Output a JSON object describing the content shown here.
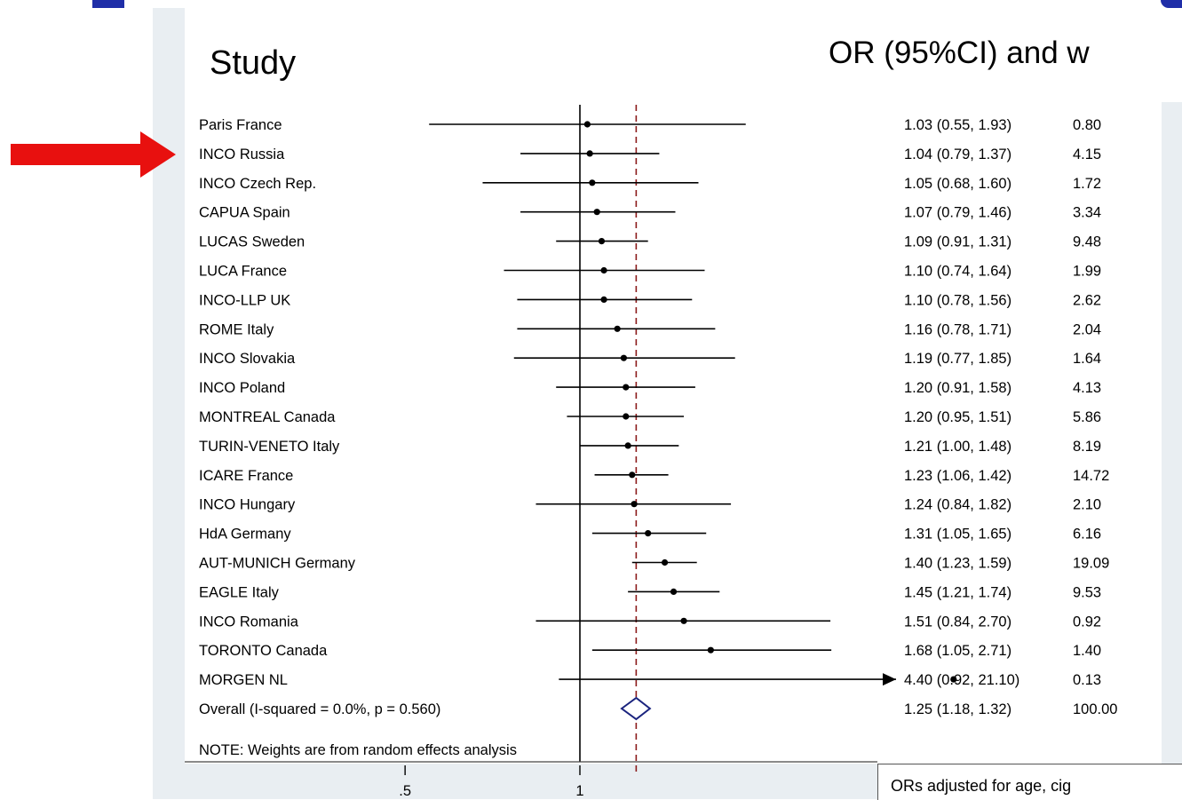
{
  "headings": {
    "study": "Study",
    "or_weight": "OR (95%CI) and w"
  },
  "footer_note": "ORs adjusted for age, cig",
  "chart_data": {
    "type": "forest",
    "scale": "log",
    "x_ticks": [
      ".5",
      "1"
    ],
    "x_tick_values": [
      0.5,
      1
    ],
    "null_line": 1,
    "overall_line": 1.25,
    "note": "NOTE: Weights are from random effects analysis",
    "studies": [
      {
        "name": "Paris France",
        "or": 1.03,
        "lo": 0.55,
        "hi": 1.93,
        "ci_text": "1.03 (0.55, 1.93)",
        "weight": "0.80"
      },
      {
        "name": "INCO Russia",
        "or": 1.04,
        "lo": 0.79,
        "hi": 1.37,
        "ci_text": "1.04 (0.79, 1.37)",
        "weight": "4.15"
      },
      {
        "name": "INCO Czech Rep.",
        "or": 1.05,
        "lo": 0.68,
        "hi": 1.6,
        "ci_text": "1.05 (0.68, 1.60)",
        "weight": "1.72"
      },
      {
        "name": "CAPUA Spain",
        "or": 1.07,
        "lo": 0.79,
        "hi": 1.46,
        "ci_text": "1.07 (0.79, 1.46)",
        "weight": "3.34"
      },
      {
        "name": "LUCAS Sweden",
        "or": 1.09,
        "lo": 0.91,
        "hi": 1.31,
        "ci_text": "1.09 (0.91, 1.31)",
        "weight": "9.48"
      },
      {
        "name": "LUCA France",
        "or": 1.1,
        "lo": 0.74,
        "hi": 1.64,
        "ci_text": "1.10 (0.74, 1.64)",
        "weight": "1.99"
      },
      {
        "name": "INCO-LLP UK",
        "or": 1.1,
        "lo": 0.78,
        "hi": 1.56,
        "ci_text": "1.10 (0.78, 1.56)",
        "weight": "2.62"
      },
      {
        "name": "ROME Italy",
        "or": 1.16,
        "lo": 0.78,
        "hi": 1.71,
        "ci_text": "1.16 (0.78, 1.71)",
        "weight": "2.04"
      },
      {
        "name": "INCO Slovakia",
        "or": 1.19,
        "lo": 0.77,
        "hi": 1.85,
        "ci_text": "1.19 (0.77, 1.85)",
        "weight": "1.64"
      },
      {
        "name": "INCO Poland",
        "or": 1.2,
        "lo": 0.91,
        "hi": 1.58,
        "ci_text": "1.20 (0.91, 1.58)",
        "weight": "4.13"
      },
      {
        "name": "MONTREAL Canada",
        "or": 1.2,
        "lo": 0.95,
        "hi": 1.51,
        "ci_text": "1.20 (0.95, 1.51)",
        "weight": "5.86"
      },
      {
        "name": "TURIN-VENETO Italy",
        "or": 1.21,
        "lo": 1.0,
        "hi": 1.48,
        "ci_text": "1.21 (1.00, 1.48)",
        "weight": "8.19"
      },
      {
        "name": "ICARE France",
        "or": 1.23,
        "lo": 1.06,
        "hi": 1.42,
        "ci_text": "1.23 (1.06, 1.42)",
        "weight": "14.72"
      },
      {
        "name": "INCO Hungary",
        "or": 1.24,
        "lo": 0.84,
        "hi": 1.82,
        "ci_text": "1.24 (0.84, 1.82)",
        "weight": "2.10"
      },
      {
        "name": "HdA Germany",
        "or": 1.31,
        "lo": 1.05,
        "hi": 1.65,
        "ci_text": "1.31 (1.05, 1.65)",
        "weight": "6.16"
      },
      {
        "name": "AUT-MUNICH Germany",
        "or": 1.4,
        "lo": 1.23,
        "hi": 1.59,
        "ci_text": "1.40 (1.23, 1.59)",
        "weight": "19.09"
      },
      {
        "name": "EAGLE Italy",
        "or": 1.45,
        "lo": 1.21,
        "hi": 1.74,
        "ci_text": "1.45 (1.21, 1.74)",
        "weight": "9.53"
      },
      {
        "name": "INCO Romania",
        "or": 1.51,
        "lo": 0.84,
        "hi": 2.7,
        "ci_text": "1.51 (0.84, 2.70)",
        "weight": "0.92"
      },
      {
        "name": "TORONTO Canada",
        "or": 1.68,
        "lo": 1.05,
        "hi": 2.71,
        "ci_text": "1.68 (1.05, 2.71)",
        "weight": "1.40"
      },
      {
        "name": "MORGEN NL",
        "or": 4.4,
        "lo": 0.92,
        "hi": 21.1,
        "ci_text": "4.40 (0.92, 21.10)",
        "weight": "0.13"
      }
    ],
    "overall": {
      "name": "Overall  (I-squared = 0.0%, p = 0.560)",
      "or": 1.25,
      "lo": 1.18,
      "hi": 1.32,
      "ci_text": "1.25 (1.18, 1.32)",
      "weight": "100.00"
    },
    "colors": {
      "ci_line": "#000000",
      "null_line": "#000000",
      "overall_dash": "#8b1a1a",
      "diamond": "#1a237e",
      "highlight_arrow": "#e8100f",
      "title_blue": "#1f2ea8"
    }
  }
}
